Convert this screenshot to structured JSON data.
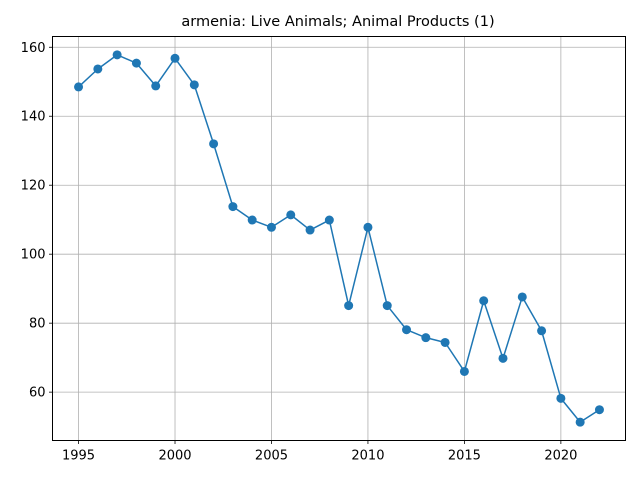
{
  "chart_data": {
    "type": "line",
    "title": "armenia: Live Animals; Animal Products (1)",
    "xlabel": "",
    "ylabel": "",
    "x": [
      1995,
      1996,
      1997,
      1998,
      1999,
      2000,
      2001,
      2002,
      2003,
      2004,
      2005,
      2006,
      2007,
      2008,
      2009,
      2010,
      2011,
      2012,
      2013,
      2014,
      2015,
      2016,
      2017,
      2018,
      2019,
      2020,
      2021,
      2022
    ],
    "series": [
      {
        "values": [
          148.5,
          153.7,
          157.8,
          155.4,
          148.8,
          156.8,
          149.1,
          132.0,
          113.8,
          109.9,
          107.8,
          111.4,
          107.0,
          109.9,
          85.1,
          107.8,
          85.1,
          78.1,
          75.8,
          74.4,
          66.0,
          86.5,
          69.8,
          87.6,
          77.8,
          58.2,
          51.3,
          54.9
        ]
      }
    ],
    "xticks": [
      1995,
      2000,
      2005,
      2010,
      2015,
      2020
    ],
    "yticks": [
      60,
      80,
      100,
      120,
      140,
      160
    ],
    "xlim": [
      1993.65,
      2023.35
    ],
    "ylim": [
      45.98,
      163.12
    ],
    "grid": true,
    "colors": {
      "line": "#1f77b4",
      "marker": "#1f77b4",
      "grid": "#b0b0b0",
      "axes": "#000000"
    }
  }
}
